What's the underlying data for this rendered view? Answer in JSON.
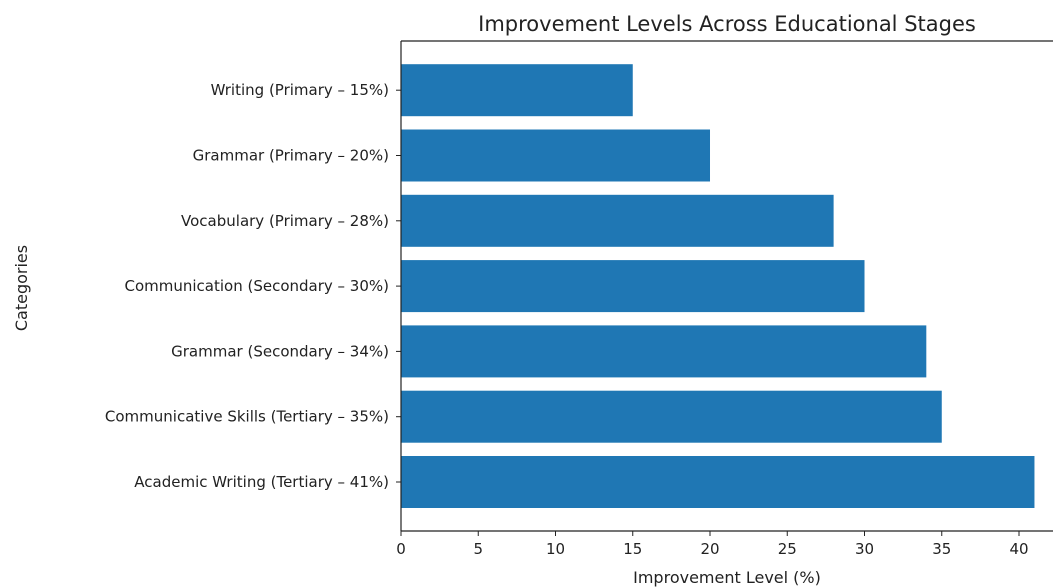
{
  "chart_data": {
    "type": "bar",
    "orientation": "horizontal",
    "title": "Improvement Levels Across Educational Stages",
    "xlabel": "Improvement Level (%)",
    "ylabel": "Categories",
    "categories": [
      "Academic Writing (Tertiary – 41%)",
      "Communicative Skills (Tertiary – 35%)",
      "Grammar (Secondary – 34%)",
      "Communication (Secondary – 30%)",
      "Vocabulary (Primary – 28%)",
      "Grammar (Primary – 20%)",
      "Writing (Primary – 15%)"
    ],
    "values": [
      41,
      35,
      34,
      30,
      28,
      20,
      15
    ],
    "xlim": [
      0,
      42.2
    ],
    "xticks": [
      0,
      5,
      10,
      15,
      20,
      25,
      30,
      35,
      40
    ],
    "bar_color": "#1f77b4",
    "grid": false,
    "legend": "none"
  }
}
